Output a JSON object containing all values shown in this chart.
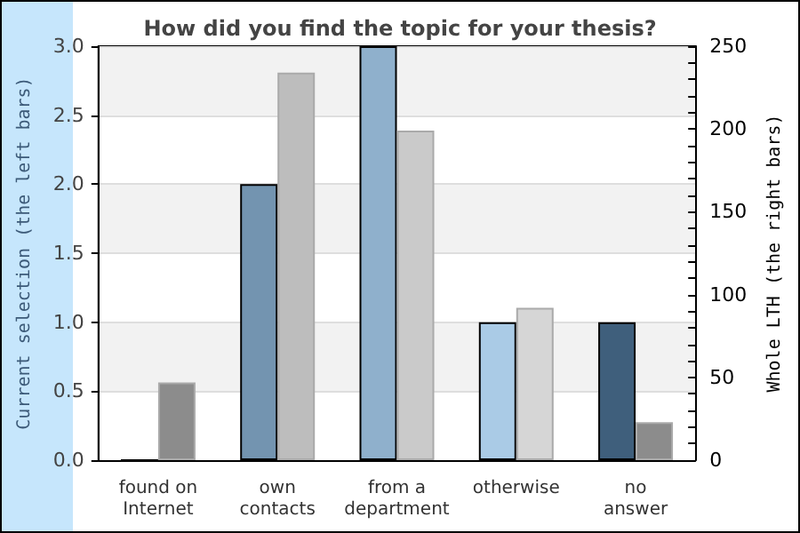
{
  "chart_data": {
    "type": "bar",
    "title": "How did you find the topic for your thesis?",
    "ylabel": "Current selection (the left bars)",
    "y2label": "Whole LTH (the right bars)",
    "categories": [
      "found on\nInternet",
      "own\ncontacts",
      "from a\ndepartment",
      "otherwise",
      "no\nanswer"
    ],
    "series": [
      {
        "colors": [
          "#5a7a98",
          "#7394b0",
          "#8fb0cc",
          "#aacbe6",
          "#3f5f7c"
        ],
        "values": [
          0,
          2,
          3,
          1,
          1
        ]
      },
      {
        "axis": "y2",
        "colors": [
          "#8c8c8c",
          "#bdbdbd",
          "#cacaca",
          "#d6d6d6",
          "#8c8c8c"
        ],
        "values": [
          47,
          234,
          199,
          92,
          23
        ]
      }
    ],
    "ylim": [
      0,
      3
    ],
    "yticks": [
      {
        "value": 0,
        "label": "0.0"
      },
      0.5,
      {
        "value": 1,
        "label": "1.0"
      },
      1.5,
      {
        "value": 2,
        "label": "2.0"
      },
      2.5,
      {
        "value": 3,
        "label": "3.0"
      }
    ],
    "y2lim": [
      0,
      250
    ],
    "y2ticks": [
      0,
      {
        "value": 10,
        "label": null
      },
      {
        "value": 20,
        "label": null
      },
      {
        "value": 30,
        "label": null
      },
      {
        "value": 40,
        "label": null
      },
      50,
      {
        "value": 60,
        "label": null
      },
      {
        "value": 70,
        "label": null
      },
      {
        "value": 80,
        "label": null
      },
      {
        "value": 90,
        "label": null
      },
      100,
      {
        "value": 110,
        "label": null
      },
      {
        "value": 120,
        "label": null
      },
      {
        "value": 130,
        "label": null
      },
      {
        "value": 140,
        "label": null
      },
      150,
      {
        "value": 160,
        "label": null
      },
      {
        "value": 170,
        "label": null
      },
      {
        "value": 180,
        "label": null
      },
      {
        "value": 190,
        "label": null
      },
      200,
      {
        "value": 210,
        "label": null
      },
      {
        "value": 220,
        "label": null
      },
      {
        "value": 230,
        "label": null
      },
      {
        "value": 240,
        "label": null
      },
      250
    ],
    "grid": "y"
  }
}
